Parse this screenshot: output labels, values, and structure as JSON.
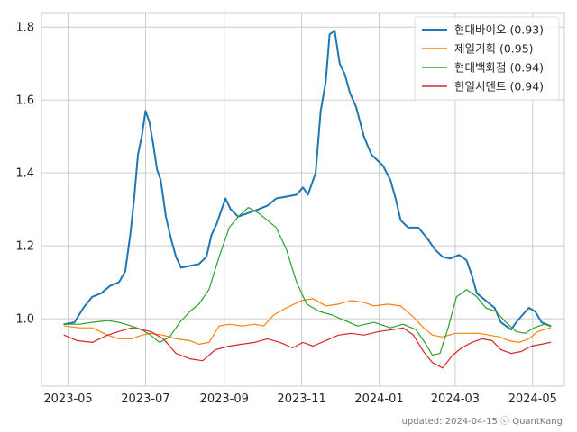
{
  "chart_data": {
    "type": "line",
    "title": "",
    "xlabel": "",
    "ylabel": "",
    "grid": true,
    "legend_position": "top-right",
    "x_axis": {
      "type": "date",
      "range": [
        "2023-04-10",
        "2024-05-26"
      ],
      "ticks": [
        "2023-05-01",
        "2023-07-01",
        "2023-09-01",
        "2023-11-01",
        "2024-01-01",
        "2024-03-01",
        "2024-05-01"
      ],
      "tick_labels": [
        "2023-05",
        "2023-07",
        "2023-09",
        "2023-11",
        "2024-01",
        "2024-03",
        "2024-05"
      ]
    },
    "y_axis": {
      "range": [
        0.815,
        1.84
      ],
      "ticks": [
        1.0,
        1.2,
        1.4,
        1.6,
        1.8
      ],
      "tick_labels": [
        "1.0",
        "1.2",
        "1.4",
        "1.6",
        "1.8"
      ]
    },
    "series": [
      {
        "name": "현대바이오 (0.93)",
        "color": "#1f77b4",
        "width": 2,
        "points": [
          [
            "2023-04-28",
            0.985
          ],
          [
            "2023-05-06",
            0.99
          ],
          [
            "2023-05-13",
            1.03
          ],
          [
            "2023-05-20",
            1.06
          ],
          [
            "2023-05-27",
            1.07
          ],
          [
            "2023-06-03",
            1.09
          ],
          [
            "2023-06-10",
            1.1
          ],
          [
            "2023-06-15",
            1.13
          ],
          [
            "2023-06-19",
            1.23
          ],
          [
            "2023-06-22",
            1.33
          ],
          [
            "2023-06-25",
            1.45
          ],
          [
            "2023-06-28",
            1.5
          ],
          [
            "2023-07-01",
            1.57
          ],
          [
            "2023-07-04",
            1.54
          ],
          [
            "2023-07-07",
            1.48
          ],
          [
            "2023-07-10",
            1.41
          ],
          [
            "2023-07-13",
            1.38
          ],
          [
            "2023-07-17",
            1.28
          ],
          [
            "2023-07-21",
            1.22
          ],
          [
            "2023-07-25",
            1.17
          ],
          [
            "2023-07-29",
            1.14
          ],
          [
            "2023-08-05",
            1.145
          ],
          [
            "2023-08-12",
            1.15
          ],
          [
            "2023-08-18",
            1.17
          ],
          [
            "2023-08-22",
            1.23
          ],
          [
            "2023-08-26",
            1.26
          ],
          [
            "2023-08-30",
            1.3
          ],
          [
            "2023-09-02",
            1.33
          ],
          [
            "2023-09-06",
            1.3
          ],
          [
            "2023-09-12",
            1.28
          ],
          [
            "2023-09-20",
            1.29
          ],
          [
            "2023-09-28",
            1.3
          ],
          [
            "2023-10-05",
            1.31
          ],
          [
            "2023-10-12",
            1.33
          ],
          [
            "2023-10-20",
            1.335
          ],
          [
            "2023-10-28",
            1.34
          ],
          [
            "2023-11-02",
            1.36
          ],
          [
            "2023-11-06",
            1.34
          ],
          [
            "2023-11-12",
            1.4
          ],
          [
            "2023-11-16",
            1.57
          ],
          [
            "2023-11-20",
            1.65
          ],
          [
            "2023-11-23",
            1.78
          ],
          [
            "2023-11-27",
            1.79
          ],
          [
            "2023-12-01",
            1.7
          ],
          [
            "2023-12-05",
            1.67
          ],
          [
            "2023-12-09",
            1.62
          ],
          [
            "2023-12-14",
            1.58
          ],
          [
            "2023-12-20",
            1.5
          ],
          [
            "2023-12-26",
            1.45
          ],
          [
            "2024-01-04",
            1.42
          ],
          [
            "2024-01-10",
            1.38
          ],
          [
            "2024-01-14",
            1.33
          ],
          [
            "2024-01-18",
            1.27
          ],
          [
            "2024-01-24",
            1.25
          ],
          [
            "2024-02-01",
            1.25
          ],
          [
            "2024-02-08",
            1.22
          ],
          [
            "2024-02-14",
            1.19
          ],
          [
            "2024-02-20",
            1.17
          ],
          [
            "2024-02-26",
            1.165
          ],
          [
            "2024-03-04",
            1.175
          ],
          [
            "2024-03-10",
            1.16
          ],
          [
            "2024-03-14",
            1.12
          ],
          [
            "2024-03-18",
            1.07
          ],
          [
            "2024-03-25",
            1.05
          ],
          [
            "2024-04-01",
            1.03
          ],
          [
            "2024-04-06",
            0.99
          ],
          [
            "2024-04-10",
            0.98
          ],
          [
            "2024-04-14",
            0.97
          ],
          [
            "2024-04-18",
            0.99
          ],
          [
            "2024-04-23",
            1.01
          ],
          [
            "2024-04-28",
            1.03
          ],
          [
            "2024-05-03",
            1.02
          ],
          [
            "2024-05-08",
            0.99
          ],
          [
            "2024-05-15",
            0.98
          ]
        ]
      },
      {
        "name": "제일기획 (0.95)",
        "color": "#ff7f0e",
        "width": 1.2,
        "points": [
          [
            "2023-04-28",
            0.98
          ],
          [
            "2023-05-10",
            0.975
          ],
          [
            "2023-05-20",
            0.975
          ],
          [
            "2023-06-01",
            0.955
          ],
          [
            "2023-06-10",
            0.945
          ],
          [
            "2023-06-20",
            0.945
          ],
          [
            "2023-06-28",
            0.955
          ],
          [
            "2023-07-05",
            0.96
          ],
          [
            "2023-07-15",
            0.955
          ],
          [
            "2023-07-25",
            0.945
          ],
          [
            "2023-08-05",
            0.94
          ],
          [
            "2023-08-12",
            0.93
          ],
          [
            "2023-08-20",
            0.935
          ],
          [
            "2023-08-28",
            0.98
          ],
          [
            "2023-09-05",
            0.985
          ],
          [
            "2023-09-15",
            0.98
          ],
          [
            "2023-09-25",
            0.985
          ],
          [
            "2023-10-02",
            0.98
          ],
          [
            "2023-10-10",
            1.01
          ],
          [
            "2023-10-20",
            1.03
          ],
          [
            "2023-11-01",
            1.05
          ],
          [
            "2023-11-10",
            1.055
          ],
          [
            "2023-11-20",
            1.035
          ],
          [
            "2023-11-30",
            1.04
          ],
          [
            "2023-12-10",
            1.05
          ],
          [
            "2023-12-20",
            1.045
          ],
          [
            "2023-12-28",
            1.035
          ],
          [
            "2024-01-08",
            1.04
          ],
          [
            "2024-01-18",
            1.035
          ],
          [
            "2024-01-28",
            1.005
          ],
          [
            "2024-02-05",
            0.975
          ],
          [
            "2024-02-12",
            0.955
          ],
          [
            "2024-02-20",
            0.95
          ],
          [
            "2024-03-01",
            0.96
          ],
          [
            "2024-03-10",
            0.96
          ],
          [
            "2024-03-20",
            0.96
          ],
          [
            "2024-03-28",
            0.955
          ],
          [
            "2024-04-05",
            0.95
          ],
          [
            "2024-04-12",
            0.94
          ],
          [
            "2024-04-20",
            0.935
          ],
          [
            "2024-04-28",
            0.945
          ],
          [
            "2024-05-05",
            0.965
          ],
          [
            "2024-05-15",
            0.975
          ]
        ]
      },
      {
        "name": "현대백화점 (0.94)",
        "color": "#2ca02c",
        "width": 1.2,
        "points": [
          [
            "2023-04-28",
            0.985
          ],
          [
            "2023-05-10",
            0.985
          ],
          [
            "2023-05-20",
            0.99
          ],
          [
            "2023-06-01",
            0.995
          ],
          [
            "2023-06-10",
            0.99
          ],
          [
            "2023-06-20",
            0.98
          ],
          [
            "2023-06-28",
            0.97
          ],
          [
            "2023-07-05",
            0.955
          ],
          [
            "2023-07-12",
            0.935
          ],
          [
            "2023-07-20",
            0.95
          ],
          [
            "2023-07-28",
            0.99
          ],
          [
            "2023-08-05",
            1.02
          ],
          [
            "2023-08-12",
            1.04
          ],
          [
            "2023-08-20",
            1.08
          ],
          [
            "2023-08-28",
            1.17
          ],
          [
            "2023-09-05",
            1.25
          ],
          [
            "2023-09-12",
            1.28
          ],
          [
            "2023-09-20",
            1.305
          ],
          [
            "2023-09-28",
            1.29
          ],
          [
            "2023-10-05",
            1.27
          ],
          [
            "2023-10-12",
            1.25
          ],
          [
            "2023-10-20",
            1.19
          ],
          [
            "2023-10-28",
            1.1
          ],
          [
            "2023-11-05",
            1.04
          ],
          [
            "2023-11-15",
            1.02
          ],
          [
            "2023-11-25",
            1.01
          ],
          [
            "2023-12-05",
            0.995
          ],
          [
            "2023-12-15",
            0.98
          ],
          [
            "2023-12-28",
            0.99
          ],
          [
            "2024-01-10",
            0.975
          ],
          [
            "2024-01-20",
            0.985
          ],
          [
            "2024-01-30",
            0.97
          ],
          [
            "2024-02-06",
            0.935
          ],
          [
            "2024-02-12",
            0.9
          ],
          [
            "2024-02-18",
            0.905
          ],
          [
            "2024-02-24",
            0.97
          ],
          [
            "2024-03-02",
            1.06
          ],
          [
            "2024-03-10",
            1.08
          ],
          [
            "2024-03-18",
            1.06
          ],
          [
            "2024-03-25",
            1.03
          ],
          [
            "2024-04-02",
            1.02
          ],
          [
            "2024-04-10",
            0.99
          ],
          [
            "2024-04-18",
            0.965
          ],
          [
            "2024-04-25",
            0.96
          ],
          [
            "2024-05-02",
            0.975
          ],
          [
            "2024-05-10",
            0.985
          ],
          [
            "2024-05-15",
            0.98
          ]
        ]
      },
      {
        "name": "한일시멘트 (0.94)",
        "color": "#d62728",
        "width": 1.2,
        "points": [
          [
            "2023-04-28",
            0.955
          ],
          [
            "2023-05-08",
            0.94
          ],
          [
            "2023-05-20",
            0.935
          ],
          [
            "2023-06-01",
            0.955
          ],
          [
            "2023-06-10",
            0.965
          ],
          [
            "2023-06-20",
            0.975
          ],
          [
            "2023-06-28",
            0.97
          ],
          [
            "2023-07-05",
            0.965
          ],
          [
            "2023-07-15",
            0.945
          ],
          [
            "2023-07-25",
            0.905
          ],
          [
            "2023-08-05",
            0.89
          ],
          [
            "2023-08-15",
            0.885
          ],
          [
            "2023-08-25",
            0.915
          ],
          [
            "2023-09-05",
            0.925
          ],
          [
            "2023-09-15",
            0.93
          ],
          [
            "2023-09-25",
            0.935
          ],
          [
            "2023-10-05",
            0.945
          ],
          [
            "2023-10-15",
            0.935
          ],
          [
            "2023-10-25",
            0.92
          ],
          [
            "2023-11-02",
            0.935
          ],
          [
            "2023-11-10",
            0.925
          ],
          [
            "2023-11-20",
            0.94
          ],
          [
            "2023-11-30",
            0.955
          ],
          [
            "2023-12-10",
            0.96
          ],
          [
            "2023-12-20",
            0.955
          ],
          [
            "2024-01-01",
            0.965
          ],
          [
            "2024-01-12",
            0.97
          ],
          [
            "2024-01-20",
            0.975
          ],
          [
            "2024-01-28",
            0.955
          ],
          [
            "2024-02-05",
            0.91
          ],
          [
            "2024-02-12",
            0.88
          ],
          [
            "2024-02-20",
            0.865
          ],
          [
            "2024-02-28",
            0.9
          ],
          [
            "2024-03-06",
            0.92
          ],
          [
            "2024-03-14",
            0.935
          ],
          [
            "2024-03-22",
            0.945
          ],
          [
            "2024-03-30",
            0.94
          ],
          [
            "2024-04-06",
            0.915
          ],
          [
            "2024-04-14",
            0.905
          ],
          [
            "2024-04-22",
            0.91
          ],
          [
            "2024-04-30",
            0.925
          ],
          [
            "2024-05-08",
            0.93
          ],
          [
            "2024-05-15",
            0.935
          ]
        ]
      }
    ],
    "footer": "updated: 2024-04-15 ⓒ QuantKang"
  }
}
